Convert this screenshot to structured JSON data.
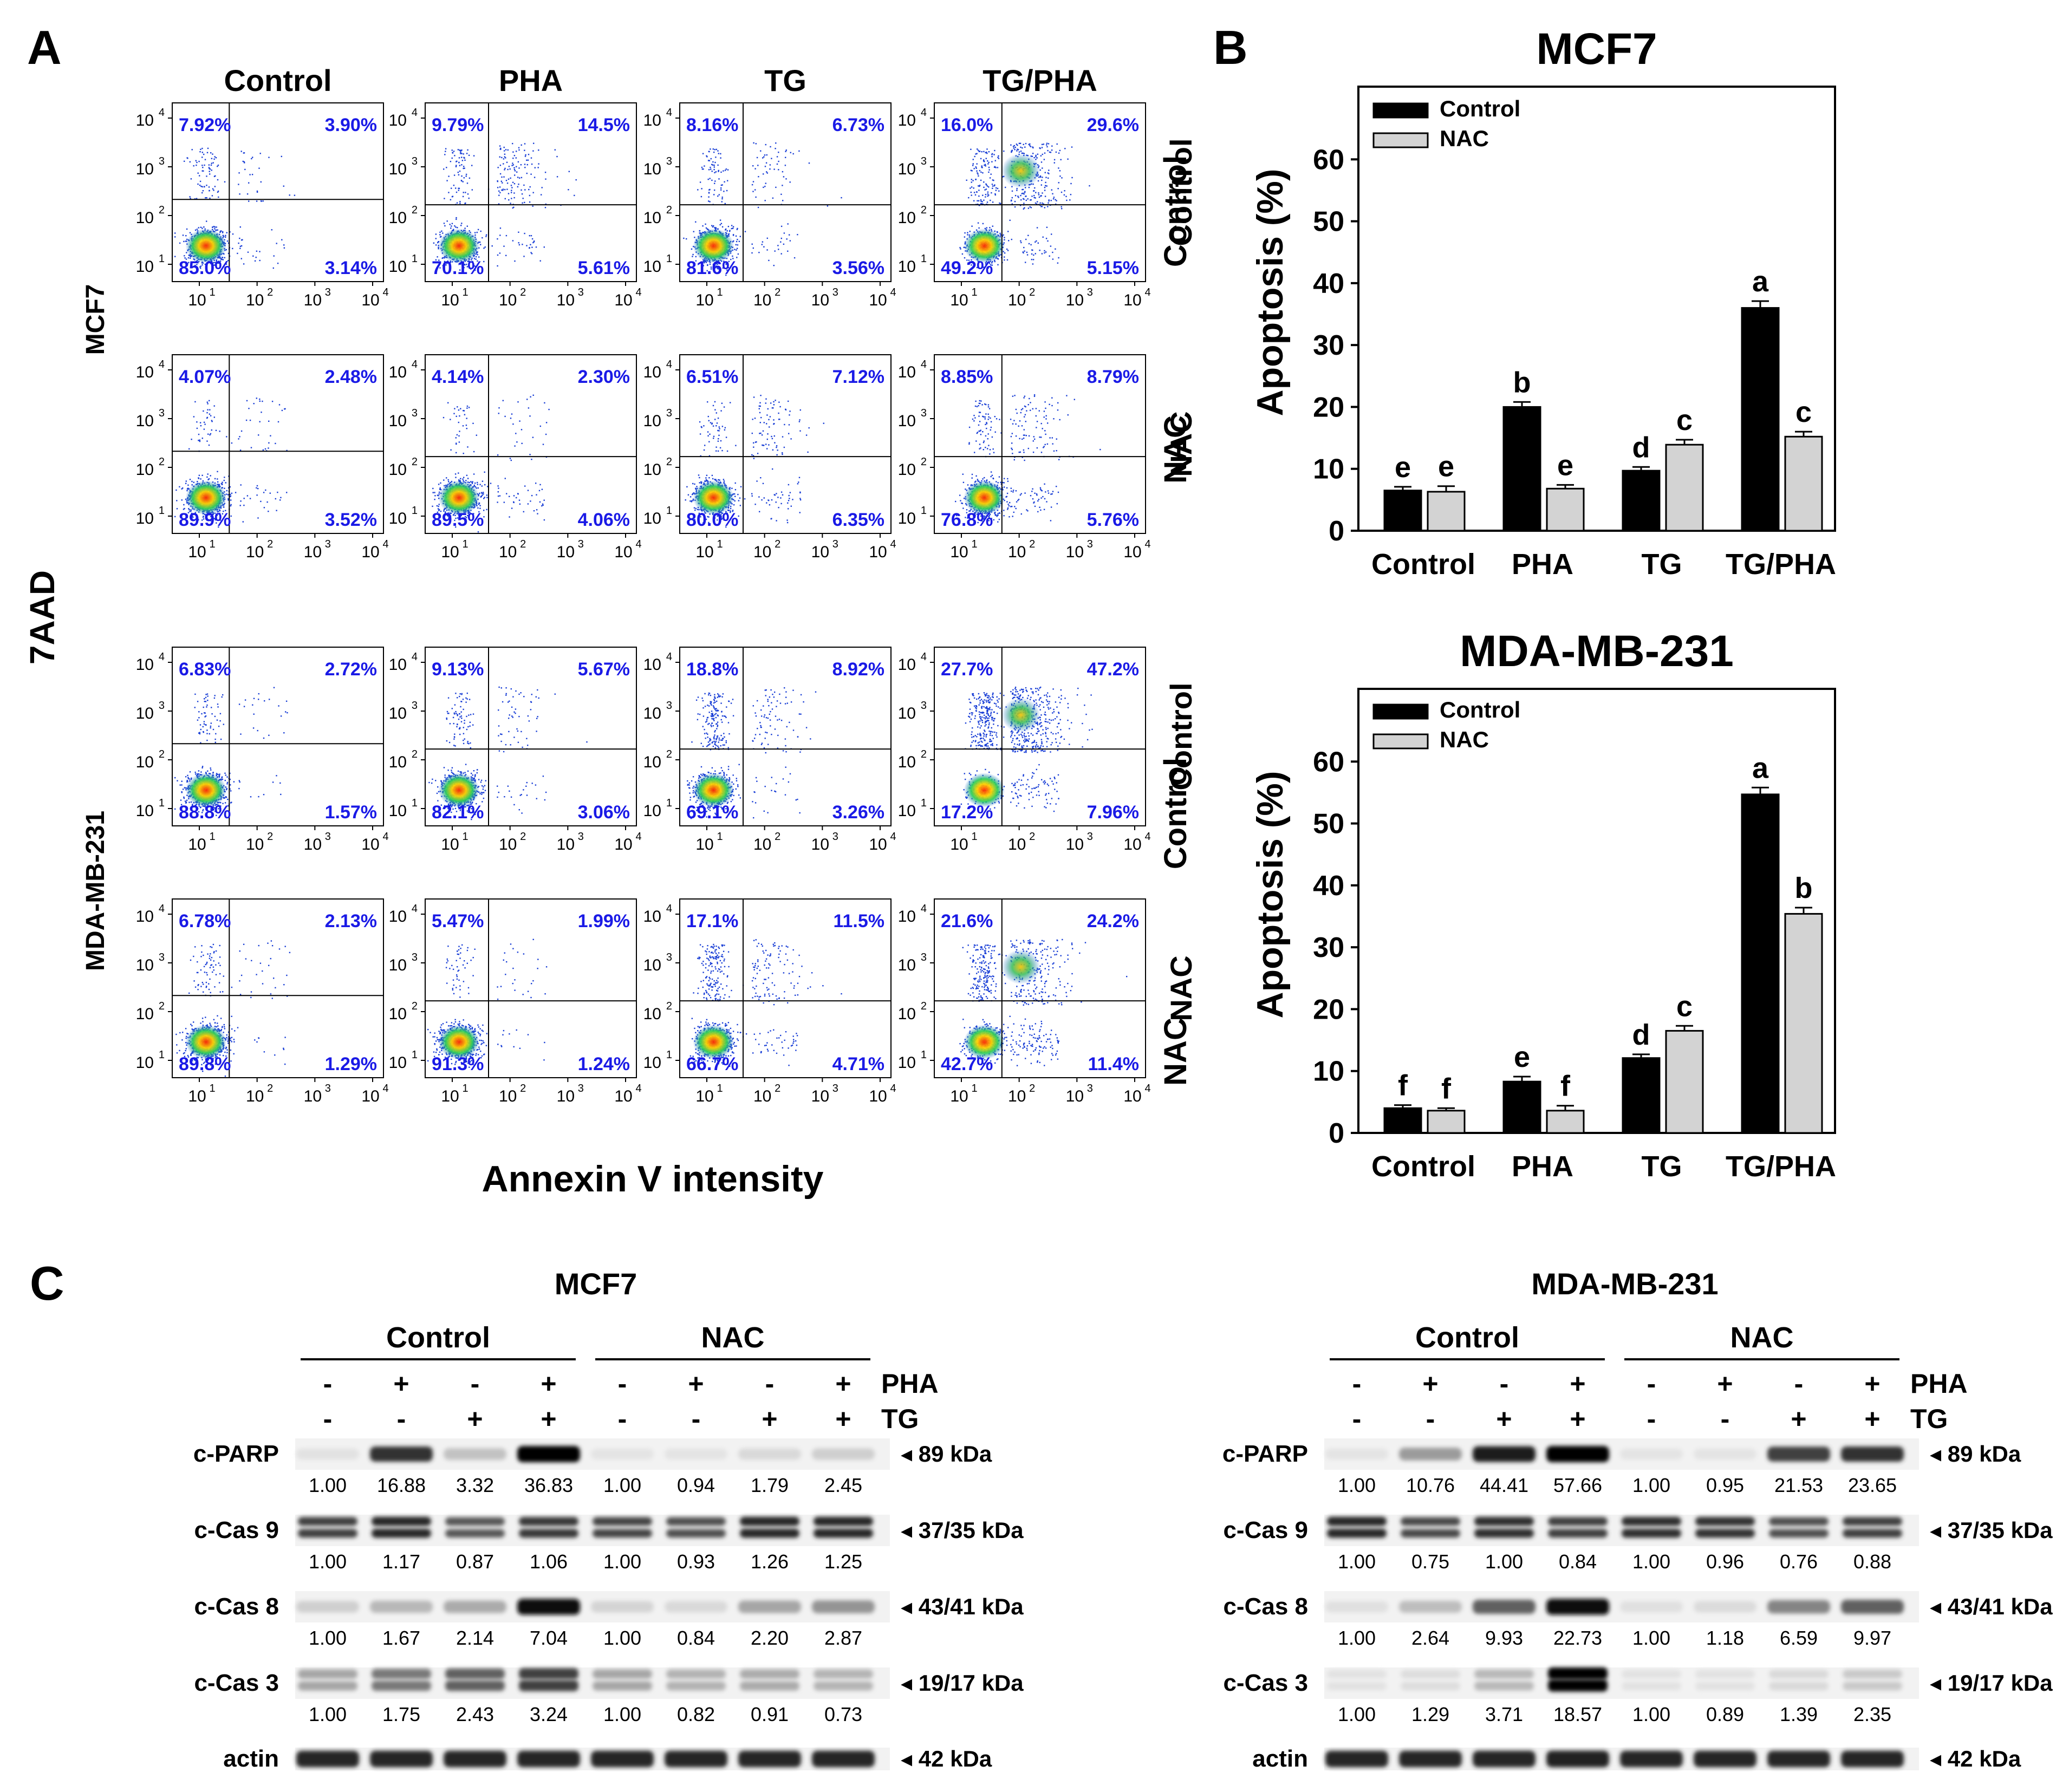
{
  "panel_a": {
    "label": "A",
    "conditions": [
      "Control",
      "PHA",
      "TG",
      "TG/PHA"
    ],
    "y_axis_title": "7AAD",
    "x_axis_title": "Annexin V intensity",
    "row_groups": [
      "MCF7",
      "MDA-MB-231"
    ],
    "row_treatments": [
      "Control",
      "NAC",
      "Control",
      "NAC"
    ],
    "tick_labels": [
      "10",
      "10",
      "10",
      "10"
    ],
    "tick_exps": [
      "1",
      "2",
      "3",
      "4"
    ],
    "scatter_color": "#1a3fd6",
    "plots": [
      [
        [
          "7.92%",
          "3.90%",
          "85.0%",
          "3.14%"
        ],
        [
          "9.79%",
          "14.5%",
          "70.1%",
          "5.61%"
        ],
        [
          "8.16%",
          "6.73%",
          "81.6%",
          "3.56%"
        ],
        [
          "16.0%",
          "29.6%",
          "49.2%",
          "5.15%"
        ]
      ],
      [
        [
          "4.07%",
          "2.48%",
          "89.9%",
          "3.52%"
        ],
        [
          "4.14%",
          "2.30%",
          "89.5%",
          "4.06%"
        ],
        [
          "6.51%",
          "7.12%",
          "80.0%",
          "6.35%"
        ],
        [
          "8.85%",
          "8.79%",
          "76.8%",
          "5.76%"
        ]
      ],
      [
        [
          "6.83%",
          "2.72%",
          "88.8%",
          "1.57%"
        ],
        [
          "9.13%",
          "5.67%",
          "82.1%",
          "3.06%"
        ],
        [
          "18.8%",
          "8.92%",
          "69.1%",
          "3.26%"
        ],
        [
          "27.7%",
          "47.2%",
          "17.2%",
          "7.96%"
        ]
      ],
      [
        [
          "6.78%",
          "2.13%",
          "89.8%",
          "1.29%"
        ],
        [
          "5.47%",
          "1.99%",
          "91.3%",
          "1.24%"
        ],
        [
          "17.1%",
          "11.5%",
          "66.7%",
          "4.71%"
        ],
        [
          "21.6%",
          "24.2%",
          "42.7%",
          "11.4%"
        ]
      ]
    ]
  },
  "panel_b": {
    "label": "B",
    "chart_data": [
      {
        "type": "bar",
        "title": "MCF7",
        "ylabel": "Apoptosis (%)",
        "ylim": [
          0,
          70
        ],
        "yticks": [
          0,
          10,
          20,
          30,
          40,
          50,
          60
        ],
        "categories": [
          "Control",
          "PHA",
          "TG",
          "TG/PHA"
        ],
        "side_labels": [
          "Control",
          "NAC"
        ],
        "series": [
          {
            "name": "Control",
            "color": "#000000",
            "values": [
              6.5,
              20.0,
              9.7,
              36.0
            ],
            "errors": [
              0.6,
              0.8,
              0.6,
              1.1
            ],
            "letters": [
              "e",
              "b",
              "d",
              "a"
            ]
          },
          {
            "name": "NAC",
            "color": "#d3d3d3",
            "values": [
              6.3,
              6.8,
              13.9,
              15.2
            ],
            "errors": [
              0.9,
              0.6,
              0.8,
              0.8
            ],
            "letters": [
              "e",
              "e",
              "c",
              "c"
            ]
          }
        ]
      },
      {
        "type": "bar",
        "title": "MDA-MB-231",
        "ylabel": "Apoptosis (%)",
        "ylim": [
          0,
          70
        ],
        "yticks": [
          0,
          10,
          20,
          30,
          40,
          50,
          60
        ],
        "categories": [
          "Control",
          "PHA",
          "TG",
          "TG/PHA"
        ],
        "side_labels": [
          "Control",
          "NAC"
        ],
        "series": [
          {
            "name": "Control",
            "color": "#000000",
            "values": [
              4.0,
              8.3,
              12.1,
              54.7
            ],
            "errors": [
              0.5,
              0.8,
              0.6,
              1.1
            ],
            "letters": [
              "f",
              "e",
              "d",
              "a"
            ]
          },
          {
            "name": "NAC",
            "color": "#d3d3d3",
            "values": [
              3.6,
              3.6,
              16.5,
              35.4
            ],
            "errors": [
              0.4,
              0.8,
              0.8,
              1.0
            ],
            "letters": [
              "f",
              "f",
              "c",
              "b"
            ]
          }
        ]
      }
    ]
  },
  "panel_c": {
    "label": "C",
    "blots": [
      {
        "title": "MCF7",
        "group_labels": [
          "Control",
          "NAC"
        ],
        "pha": [
          "-",
          "+",
          "-",
          "+",
          "-",
          "+",
          "-",
          "+"
        ],
        "tg": [
          "-",
          "-",
          "+",
          "+",
          "-",
          "-",
          "+",
          "+"
        ],
        "pha_label": "PHA",
        "tg_label": "TG",
        "rows": [
          {
            "name": "c-PARP",
            "kda": "◂ 89 kDa",
            "values": [
              "1.00",
              "16.88",
              "3.32",
              "36.83",
              "1.00",
              "0.94",
              "1.79",
              "2.45"
            ],
            "intensity": [
              0.04,
              0.8,
              0.18,
              1.0,
              0.03,
              0.03,
              0.08,
              0.12
            ]
          },
          {
            "name": "c-Cas 9",
            "kda": "◂ 37/35 kDa",
            "values": [
              "1.00",
              "1.17",
              "0.87",
              "1.06",
              "1.00",
              "0.93",
              "1.26",
              "1.25"
            ],
            "intensity": [
              0.75,
              0.85,
              0.65,
              0.78,
              0.72,
              0.68,
              0.85,
              0.85
            ]
          },
          {
            "name": "c-Cas 8",
            "kda": "◂ 43/41 kDa",
            "values": [
              "1.00",
              "1.67",
              "2.14",
              "7.04",
              "1.00",
              "0.84",
              "2.20",
              "2.87"
            ],
            "intensity": [
              0.12,
              0.22,
              0.28,
              0.95,
              0.1,
              0.08,
              0.3,
              0.38
            ]
          },
          {
            "name": "c-Cas 3",
            "kda": "◂ 19/17 kDa",
            "values": [
              "1.00",
              "1.75",
              "2.43",
              "3.24",
              "1.00",
              "0.82",
              "0.91",
              "0.73"
            ],
            "intensity": [
              0.3,
              0.5,
              0.6,
              0.75,
              0.3,
              0.25,
              0.28,
              0.24
            ]
          },
          {
            "name": "actin",
            "kda": "◂ 42 kDa",
            "values": [],
            "intensity": [
              0.85,
              0.85,
              0.85,
              0.85,
              0.85,
              0.85,
              0.85,
              0.85
            ]
          }
        ]
      },
      {
        "title": "MDA-MB-231",
        "group_labels": [
          "Control",
          "NAC"
        ],
        "pha": [
          "-",
          "+",
          "-",
          "+",
          "-",
          "+",
          "-",
          "+"
        ],
        "tg": [
          "-",
          "-",
          "+",
          "+",
          "-",
          "-",
          "+",
          "+"
        ],
        "pha_label": "PHA",
        "tg_label": "TG",
        "rows": [
          {
            "name": "c-PARP",
            "kda": "◂ 89 kDa",
            "values": [
              "1.00",
              "10.76",
              "44.41",
              "57.66",
              "1.00",
              "0.95",
              "21.53",
              "23.65"
            ],
            "intensity": [
              0.03,
              0.35,
              0.9,
              1.0,
              0.03,
              0.03,
              0.75,
              0.8
            ]
          },
          {
            "name": "c-Cas 9",
            "kda": "◂ 37/35 kDa",
            "values": [
              "1.00",
              "0.75",
              "1.00",
              "0.84",
              "1.00",
              "0.96",
              "0.76",
              "0.88"
            ],
            "intensity": [
              0.85,
              0.7,
              0.82,
              0.75,
              0.82,
              0.8,
              0.68,
              0.75
            ]
          },
          {
            "name": "c-Cas 8",
            "kda": "◂ 43/41 kDa",
            "values": [
              "1.00",
              "2.64",
              "9.93",
              "22.73",
              "1.00",
              "1.18",
              "6.59",
              "9.97"
            ],
            "intensity": [
              0.05,
              0.2,
              0.6,
              0.95,
              0.05,
              0.07,
              0.45,
              0.6
            ]
          },
          {
            "name": "c-Cas 3",
            "kda": "◂ 19/17 kDa",
            "values": [
              "1.00",
              "1.29",
              "3.71",
              "18.57",
              "1.00",
              "0.89",
              "1.39",
              "2.35"
            ],
            "intensity": [
              0.04,
              0.06,
              0.22,
              1.0,
              0.04,
              0.04,
              0.08,
              0.15
            ]
          },
          {
            "name": "actin",
            "kda": "◂ 42 kDa",
            "values": [],
            "intensity": [
              0.85,
              0.85,
              0.85,
              0.88,
              0.85,
              0.85,
              0.85,
              0.85
            ]
          }
        ]
      }
    ]
  }
}
